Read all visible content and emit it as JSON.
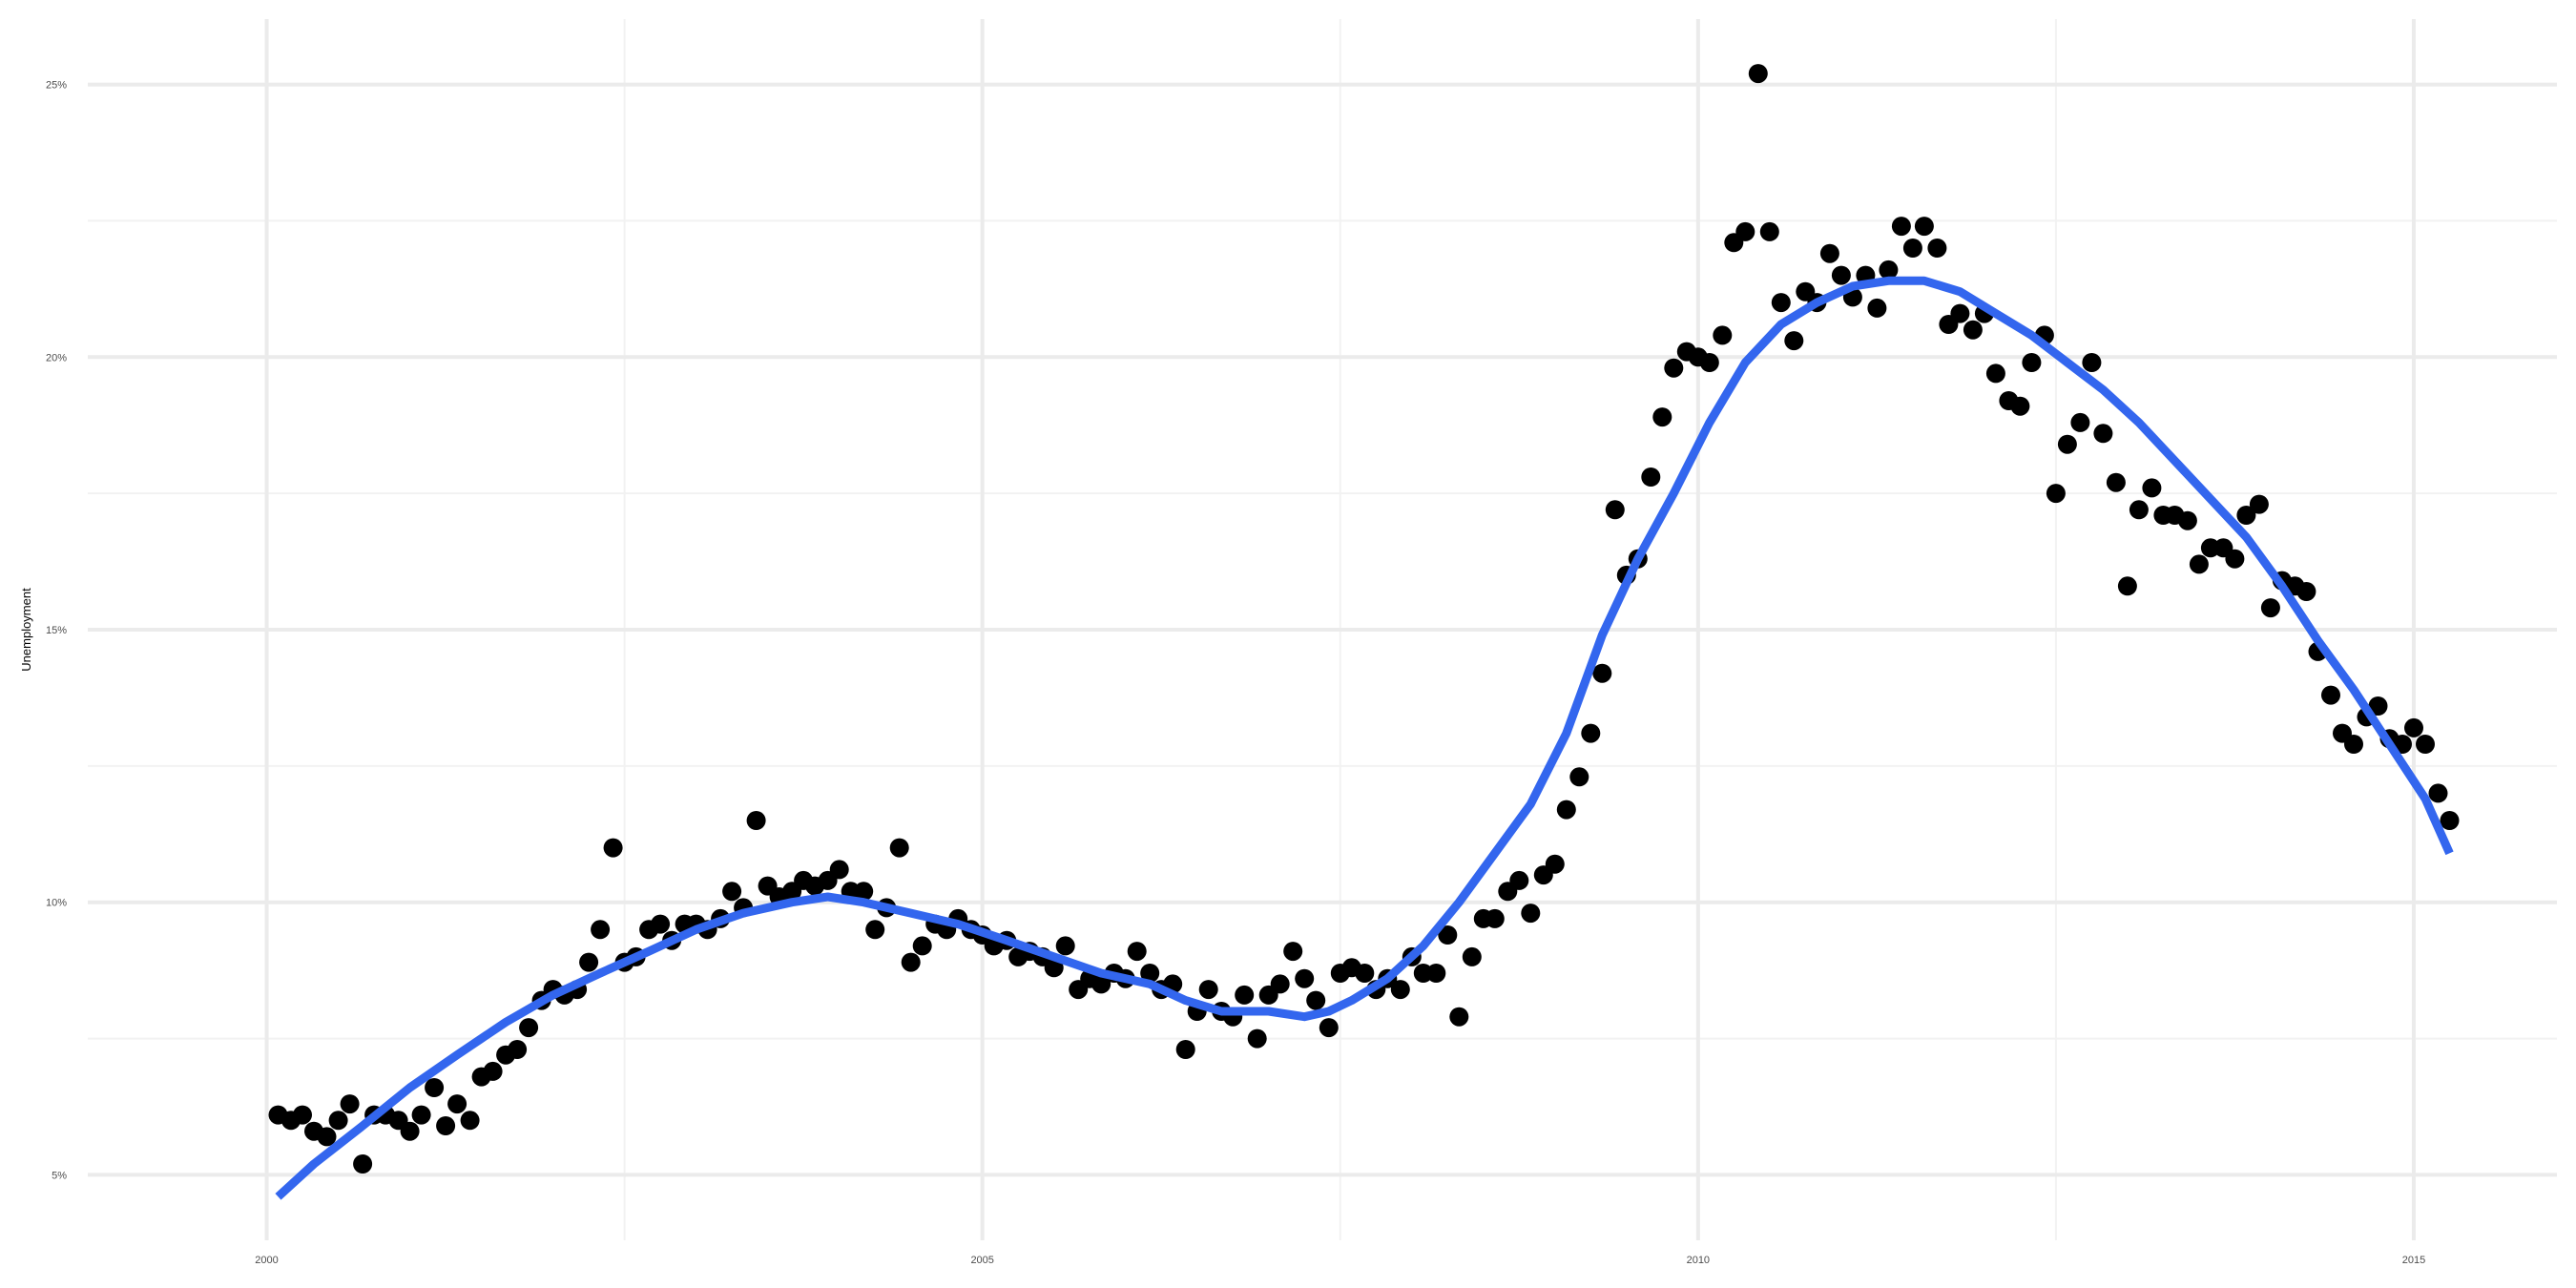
{
  "chart_data": {
    "type": "scatter",
    "title": "",
    "xlabel": "",
    "ylabel": "Unemployment",
    "xlim": [
      1998.75,
      2016.0
    ],
    "ylim": [
      3.8,
      26.2
    ],
    "x_ticks": [
      2000,
      2005,
      2010,
      2015
    ],
    "x_tick_labels": [
      "2000",
      "2005",
      "2010",
      "2015"
    ],
    "x_minor_ticks": [
      2002.5,
      2007.5,
      2012.5
    ],
    "y_ticks": [
      5,
      10,
      15,
      20,
      25
    ],
    "y_tick_labels": [
      "5%",
      "10%",
      "15%",
      "20%",
      "25%"
    ],
    "y_minor_ticks": [
      7.5,
      12.5,
      17.5,
      22.5
    ],
    "grid": true,
    "legend": "none",
    "colors": {
      "points": "#000000",
      "trend": "#3366ee",
      "grid_major": "#ebebeb",
      "grid_minor": "#f2f2f2"
    },
    "series": [
      {
        "type": "scatter",
        "points": [
          [
            2000.08,
            6.1
          ],
          [
            2000.17,
            6.0
          ],
          [
            2000.25,
            6.1
          ],
          [
            2000.33,
            5.8
          ],
          [
            2000.42,
            5.7
          ],
          [
            2000.5,
            6.0
          ],
          [
            2000.58,
            6.3
          ],
          [
            2000.67,
            5.2
          ],
          [
            2000.75,
            6.1
          ],
          [
            2000.83,
            6.1
          ],
          [
            2000.92,
            6.0
          ],
          [
            2001.0,
            5.8
          ],
          [
            2001.08,
            6.1
          ],
          [
            2001.17,
            6.6
          ],
          [
            2001.25,
            5.9
          ],
          [
            2001.33,
            6.3
          ],
          [
            2001.42,
            6.0
          ],
          [
            2001.5,
            6.8
          ],
          [
            2001.58,
            6.9
          ],
          [
            2001.67,
            7.2
          ],
          [
            2001.75,
            7.3
          ],
          [
            2001.83,
            7.7
          ],
          [
            2001.92,
            8.2
          ],
          [
            2002.0,
            8.4
          ],
          [
            2002.08,
            8.3
          ],
          [
            2002.17,
            8.4
          ],
          [
            2002.25,
            8.9
          ],
          [
            2002.33,
            9.5
          ],
          [
            2002.42,
            11.0
          ],
          [
            2002.5,
            8.9
          ],
          [
            2002.58,
            9.0
          ],
          [
            2002.67,
            9.5
          ],
          [
            2002.75,
            9.6
          ],
          [
            2002.83,
            9.3
          ],
          [
            2002.92,
            9.6
          ],
          [
            2003.0,
            9.6
          ],
          [
            2003.08,
            9.5
          ],
          [
            2003.17,
            9.7
          ],
          [
            2003.25,
            10.2
          ],
          [
            2003.33,
            9.9
          ],
          [
            2003.42,
            11.5
          ],
          [
            2003.5,
            10.3
          ],
          [
            2003.58,
            10.1
          ],
          [
            2003.67,
            10.2
          ],
          [
            2003.75,
            10.4
          ],
          [
            2003.83,
            10.3
          ],
          [
            2003.92,
            10.4
          ],
          [
            2004.0,
            10.6
          ],
          [
            2004.08,
            10.2
          ],
          [
            2004.17,
            10.2
          ],
          [
            2004.25,
            9.5
          ],
          [
            2004.33,
            9.9
          ],
          [
            2004.42,
            11.0
          ],
          [
            2004.5,
            8.9
          ],
          [
            2004.58,
            9.2
          ],
          [
            2004.67,
            9.6
          ],
          [
            2004.75,
            9.5
          ],
          [
            2004.83,
            9.7
          ],
          [
            2004.92,
            9.5
          ],
          [
            2005.0,
            9.4
          ],
          [
            2005.08,
            9.2
          ],
          [
            2005.17,
            9.3
          ],
          [
            2005.25,
            9.0
          ],
          [
            2005.33,
            9.1
          ],
          [
            2005.42,
            9.0
          ],
          [
            2005.5,
            8.8
          ],
          [
            2005.58,
            9.2
          ],
          [
            2005.67,
            8.4
          ],
          [
            2005.75,
            8.6
          ],
          [
            2005.83,
            8.5
          ],
          [
            2005.92,
            8.7
          ],
          [
            2006.0,
            8.6
          ],
          [
            2006.08,
            9.1
          ],
          [
            2006.17,
            8.7
          ],
          [
            2006.25,
            8.4
          ],
          [
            2006.33,
            8.5
          ],
          [
            2006.42,
            7.3
          ],
          [
            2006.5,
            8.0
          ],
          [
            2006.58,
            8.4
          ],
          [
            2006.67,
            8.0
          ],
          [
            2006.75,
            7.9
          ],
          [
            2006.83,
            8.3
          ],
          [
            2006.92,
            7.5
          ],
          [
            2007.0,
            8.3
          ],
          [
            2007.08,
            8.5
          ],
          [
            2007.17,
            9.1
          ],
          [
            2007.25,
            8.6
          ],
          [
            2007.33,
            8.2
          ],
          [
            2007.42,
            7.7
          ],
          [
            2007.5,
            8.7
          ],
          [
            2007.58,
            8.8
          ],
          [
            2007.67,
            8.7
          ],
          [
            2007.75,
            8.4
          ],
          [
            2007.83,
            8.6
          ],
          [
            2007.92,
            8.4
          ],
          [
            2008.0,
            9.0
          ],
          [
            2008.08,
            8.7
          ],
          [
            2008.17,
            8.7
          ],
          [
            2008.25,
            9.4
          ],
          [
            2008.33,
            7.9
          ],
          [
            2008.42,
            9.0
          ],
          [
            2008.5,
            9.7
          ],
          [
            2008.58,
            9.7
          ],
          [
            2008.67,
            10.2
          ],
          [
            2008.75,
            10.4
          ],
          [
            2008.83,
            9.8
          ],
          [
            2008.92,
            10.5
          ],
          [
            2009.0,
            10.7
          ],
          [
            2009.08,
            11.7
          ],
          [
            2009.17,
            12.3
          ],
          [
            2009.25,
            13.1
          ],
          [
            2009.33,
            14.2
          ],
          [
            2009.42,
            17.2
          ],
          [
            2009.5,
            16.0
          ],
          [
            2009.58,
            16.3
          ],
          [
            2009.67,
            17.8
          ],
          [
            2009.75,
            18.9
          ],
          [
            2009.83,
            19.8
          ],
          [
            2009.92,
            20.1
          ],
          [
            2010.0,
            20.0
          ],
          [
            2010.08,
            19.9
          ],
          [
            2010.17,
            20.4
          ],
          [
            2010.25,
            22.1
          ],
          [
            2010.33,
            22.3
          ],
          [
            2010.42,
            25.2
          ],
          [
            2010.5,
            22.3
          ],
          [
            2010.58,
            21.0
          ],
          [
            2010.67,
            20.3
          ],
          [
            2010.75,
            21.2
          ],
          [
            2010.83,
            21.0
          ],
          [
            2010.92,
            21.9
          ],
          [
            2011.0,
            21.5
          ],
          [
            2011.08,
            21.1
          ],
          [
            2011.17,
            21.5
          ],
          [
            2011.25,
            20.9
          ],
          [
            2011.33,
            21.6
          ],
          [
            2011.42,
            22.4
          ],
          [
            2011.5,
            22.0
          ],
          [
            2011.58,
            22.4
          ],
          [
            2011.67,
            22.0
          ],
          [
            2011.75,
            20.6
          ],
          [
            2011.83,
            20.8
          ],
          [
            2011.92,
            20.5
          ],
          [
            2012.0,
            20.8
          ],
          [
            2012.08,
            19.7
          ],
          [
            2012.17,
            19.2
          ],
          [
            2012.25,
            19.1
          ],
          [
            2012.33,
            19.9
          ],
          [
            2012.42,
            20.4
          ],
          [
            2012.5,
            17.5
          ],
          [
            2012.58,
            18.4
          ],
          [
            2012.67,
            18.8
          ],
          [
            2012.75,
            19.9
          ],
          [
            2012.83,
            18.6
          ],
          [
            2012.92,
            17.7
          ],
          [
            2013.0,
            15.8
          ],
          [
            2013.08,
            17.2
          ],
          [
            2013.17,
            17.6
          ],
          [
            2013.25,
            17.1
          ],
          [
            2013.33,
            17.1
          ],
          [
            2013.42,
            17.0
          ],
          [
            2013.5,
            16.2
          ],
          [
            2013.58,
            16.5
          ],
          [
            2013.67,
            16.5
          ],
          [
            2013.75,
            16.3
          ],
          [
            2013.83,
            17.1
          ],
          [
            2013.92,
            17.3
          ],
          [
            2014.0,
            15.4
          ],
          [
            2014.08,
            15.9
          ],
          [
            2014.17,
            15.8
          ],
          [
            2014.25,
            15.7
          ],
          [
            2014.33,
            14.6
          ],
          [
            2014.42,
            13.8
          ],
          [
            2014.5,
            13.1
          ],
          [
            2014.58,
            12.9
          ],
          [
            2014.67,
            13.4
          ],
          [
            2014.75,
            13.6
          ],
          [
            2014.83,
            13.0
          ],
          [
            2014.92,
            12.9
          ],
          [
            2015.0,
            13.2
          ],
          [
            2015.08,
            12.9
          ],
          [
            2015.17,
            12.0
          ],
          [
            2015.25,
            11.5
          ]
        ]
      },
      {
        "type": "line",
        "points": [
          [
            2000.08,
            4.6
          ],
          [
            2000.33,
            5.2
          ],
          [
            2000.67,
            5.9
          ],
          [
            2001.0,
            6.6
          ],
          [
            2001.33,
            7.2
          ],
          [
            2001.67,
            7.8
          ],
          [
            2002.0,
            8.3
          ],
          [
            2002.33,
            8.7
          ],
          [
            2002.67,
            9.1
          ],
          [
            2003.0,
            9.5
          ],
          [
            2003.33,
            9.8
          ],
          [
            2003.67,
            10.0
          ],
          [
            2003.92,
            10.1
          ],
          [
            2004.17,
            10.0
          ],
          [
            2004.5,
            9.8
          ],
          [
            2004.83,
            9.6
          ],
          [
            2005.17,
            9.3
          ],
          [
            2005.5,
            9.0
          ],
          [
            2005.83,
            8.7
          ],
          [
            2006.17,
            8.5
          ],
          [
            2006.42,
            8.2
          ],
          [
            2006.67,
            8.0
          ],
          [
            2007.0,
            8.0
          ],
          [
            2007.25,
            7.9
          ],
          [
            2007.42,
            8.0
          ],
          [
            2007.58,
            8.2
          ],
          [
            2007.83,
            8.6
          ],
          [
            2008.08,
            9.2
          ],
          [
            2008.33,
            10.0
          ],
          [
            2008.58,
            10.9
          ],
          [
            2008.83,
            11.8
          ],
          [
            2009.08,
            13.1
          ],
          [
            2009.33,
            14.9
          ],
          [
            2009.58,
            16.3
          ],
          [
            2009.83,
            17.5
          ],
          [
            2010.08,
            18.8
          ],
          [
            2010.33,
            19.9
          ],
          [
            2010.58,
            20.6
          ],
          [
            2010.83,
            21.0
          ],
          [
            2011.08,
            21.3
          ],
          [
            2011.33,
            21.4
          ],
          [
            2011.58,
            21.4
          ],
          [
            2011.83,
            21.2
          ],
          [
            2012.08,
            20.8
          ],
          [
            2012.33,
            20.4
          ],
          [
            2012.58,
            19.9
          ],
          [
            2012.83,
            19.4
          ],
          [
            2013.08,
            18.8
          ],
          [
            2013.33,
            18.1
          ],
          [
            2013.58,
            17.4
          ],
          [
            2013.83,
            16.7
          ],
          [
            2014.08,
            15.8
          ],
          [
            2014.33,
            14.8
          ],
          [
            2014.58,
            13.9
          ],
          [
            2014.83,
            12.9
          ],
          [
            2015.08,
            11.9
          ],
          [
            2015.25,
            10.9
          ]
        ]
      }
    ]
  }
}
